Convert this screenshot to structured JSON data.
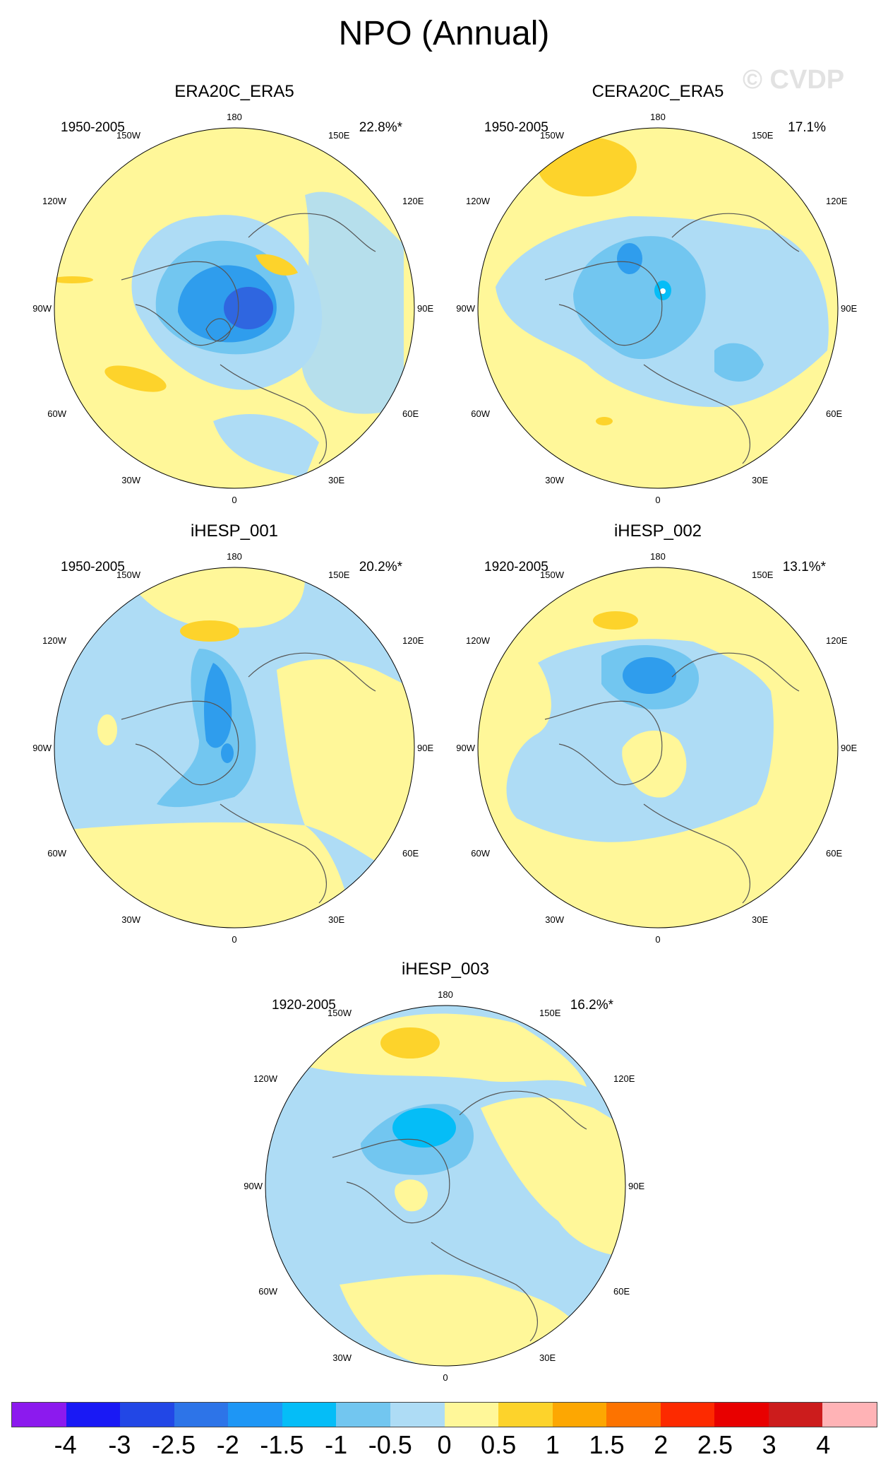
{
  "title": "NPO (Annual)",
  "watermark": "© CVDP",
  "colors": {
    "lightYellow": "#fff799",
    "yellow": "#fdd32b",
    "paleBlue": "#aedcf5",
    "lightBlue": "#72c6f0",
    "midBlue": "#2f9ded",
    "blue": "#1aa0f8",
    "darkBlue": "#2f66e0",
    "coast": "#555555"
  },
  "panels": [
    {
      "title": "ERA20C_ERA5",
      "years": "1950-2005",
      "pct": "22.8%*"
    },
    {
      "title": "CERA20C_ERA5",
      "years": "1950-2005",
      "pct": "17.1%"
    },
    {
      "title": "iHESP_001",
      "years": "1950-2005",
      "pct": "20.2%*"
    },
    {
      "title": "iHESP_002",
      "years": "1920-2005",
      "pct": "13.1%*"
    },
    {
      "title": "iHESP_003",
      "years": "1920-2005",
      "pct": "16.2%*"
    }
  ],
  "longitude_labels": {
    "top": "180",
    "top_left": "150W",
    "top_right": "150E",
    "upper_left": "120W",
    "upper_right": "120E",
    "left": "90W",
    "right": "90E",
    "lower_left": "60W",
    "lower_right": "60E",
    "bottom_left": "30W",
    "bottom_right": "30E",
    "bottom": "0"
  },
  "colorbar": {
    "colors": [
      "#8c1aee",
      "#1919f5",
      "#2247e6",
      "#2d74e8",
      "#1e96f5",
      "#05bdf7",
      "#72c6f0",
      "#aedcf5",
      "#fff799",
      "#fdd32b",
      "#fda702",
      "#fd7300",
      "#fd2a00",
      "#e80000",
      "#cc1c1c",
      "#ffb3b6"
    ],
    "ticks": [
      "-4",
      "-3",
      "-2.5",
      "-2",
      "-1.5",
      "-1",
      "-0.5",
      "0",
      "0.5",
      "1",
      "1.5",
      "2",
      "2.5",
      "3",
      "4"
    ]
  }
}
